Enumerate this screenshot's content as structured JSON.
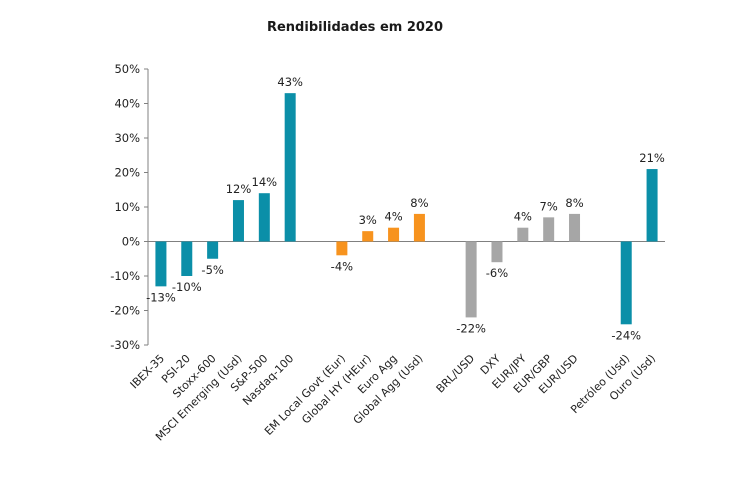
{
  "chart_data": {
    "type": "bar",
    "title": "Rendibilidades em 2020",
    "xlabel": "",
    "ylabel": "",
    "ylim": [
      -30,
      50
    ],
    "yticks": [
      -30,
      -20,
      -10,
      0,
      10,
      20,
      30,
      40,
      50
    ],
    "ytick_labels": [
      "-30%",
      "-20%",
      "-10%",
      "0%",
      "10%",
      "20%",
      "30%",
      "40%",
      "50%"
    ],
    "grid": false,
    "legend": "none",
    "categories": [
      "IBEX-35",
      "PSI-20",
      "Stoxx-600",
      "MSCI Emerging (Usd)",
      "S&P-500",
      "Nasdaq-100",
      "",
      "EM Local Govt (Eur)",
      "Global HY (HEur)",
      "Euro Agg",
      "Global Agg (Usd)",
      "",
      "BRL/USD",
      "DXY",
      "EUR/JPY",
      "EUR/GBP",
      "EUR/USD",
      "",
      "Petróleo (Usd)",
      "Ouro (Usd)"
    ],
    "values": [
      -13,
      -10,
      -5,
      12,
      14,
      43,
      null,
      -4,
      3,
      4,
      8,
      null,
      -22,
      -6,
      4,
      7,
      8,
      null,
      -24,
      21
    ],
    "data_labels": [
      "-13%",
      "-10%",
      "-5%",
      "12%",
      "14%",
      "43%",
      "",
      "-4%",
      "3%",
      "4%",
      "8%",
      "",
      "-22%",
      "-6%",
      "4%",
      "7%",
      "8%",
      "",
      "-24%",
      "21%"
    ],
    "bar_colors": [
      "#0b8fa8",
      "#0b8fa8",
      "#0b8fa8",
      "#0b8fa8",
      "#0b8fa8",
      "#0b8fa8",
      "",
      "#f7931e",
      "#f7931e",
      "#f7931e",
      "#f7931e",
      "",
      "#a6a6a6",
      "#a6a6a6",
      "#a6a6a6",
      "#a6a6a6",
      "#a6a6a6",
      "",
      "#0b8fa8",
      "#0b8fa8"
    ]
  }
}
